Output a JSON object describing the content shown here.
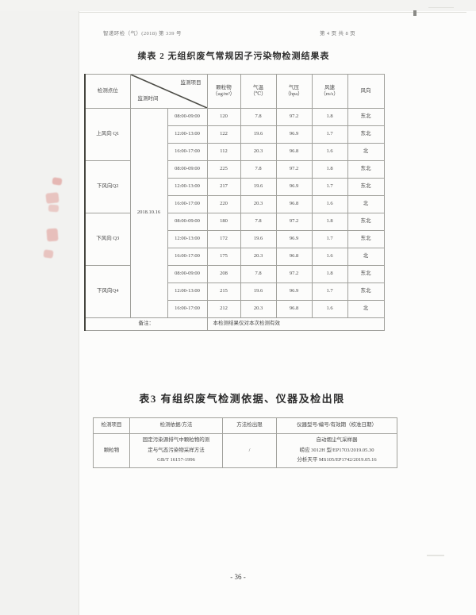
{
  "page": {
    "header_left": "智递环检（气）(2018) 第 339 号",
    "header_right": "第 4 页 共 8 页",
    "footer": "- 36 -"
  },
  "table1": {
    "title": "续表 2 无组织废气常规因子污染物检测结果表",
    "point_header": "检测点位",
    "corner_top": "监测项目",
    "corner_bottom": "监测时间",
    "columns": [
      {
        "name": "颗粒物",
        "unit": "（ug/m³）"
      },
      {
        "name": "气温",
        "unit": "（℃）"
      },
      {
        "name": "气压",
        "unit": "（hpa）"
      },
      {
        "name": "风速",
        "unit": "（m/s）"
      },
      {
        "name": "风向",
        "unit": ""
      }
    ],
    "date": "2018.10.16",
    "groups": [
      {
        "point": "上风向 Q1",
        "rows": [
          {
            "time": "08:00-09:00",
            "values": [
              "120",
              "7.8",
              "97.2",
              "1.8",
              "东北"
            ]
          },
          {
            "time": "12:00-13:00",
            "values": [
              "122",
              "19.6",
              "96.9",
              "1.7",
              "东北"
            ]
          },
          {
            "time": "16:00-17:00",
            "values": [
              "112",
              "20.3",
              "96.8",
              "1.6",
              "北"
            ]
          }
        ]
      },
      {
        "point": "下风向Q2",
        "rows": [
          {
            "time": "08:00-09:00",
            "values": [
              "225",
              "7.8",
              "97.2",
              "1.8",
              "东北"
            ]
          },
          {
            "time": "12:00-13:00",
            "values": [
              "217",
              "19.6",
              "96.9",
              "1.7",
              "东北"
            ]
          },
          {
            "time": "16:00-17:00",
            "values": [
              "220",
              "20.3",
              "96.8",
              "1.6",
              "北"
            ]
          }
        ]
      },
      {
        "point": "下风向 Q3",
        "rows": [
          {
            "time": "08:00-09:00",
            "values": [
              "180",
              "7.8",
              "97.2",
              "1.8",
              "东北"
            ]
          },
          {
            "time": "12:00-13:00",
            "values": [
              "172",
              "19.6",
              "96.9",
              "1.7",
              "东北"
            ]
          },
          {
            "time": "16:00-17:00",
            "values": [
              "175",
              "20.3",
              "96.8",
              "1.6",
              "北"
            ]
          }
        ]
      },
      {
        "point": "下风向Q4",
        "rows": [
          {
            "time": "08:00-09:00",
            "values": [
              "208",
              "7.8",
              "97.2",
              "1.8",
              "东北"
            ]
          },
          {
            "time": "12:00-13:00",
            "values": [
              "215",
              "19.6",
              "96.9",
              "1.7",
              "东北"
            ]
          },
          {
            "time": "16:00-17:00",
            "values": [
              "212",
              "20.3",
              "96.8",
              "1.6",
              "北"
            ]
          }
        ]
      }
    ],
    "note_label": "备注：",
    "note_text": "本检测结果仅对本次检测有效"
  },
  "table2": {
    "title": "表3 有组织废气检测依据、仪器及检出限",
    "headers": [
      "检测项目",
      "检测依据/方法",
      "方法检出限",
      "仪器型号/编号/有效期（校准日期）"
    ],
    "rows": [
      {
        "item": "颗粒物",
        "method_lines": [
          "固定污染源排气中颗粒物的测",
          "定与气态污染物采样方法",
          "GB/T 16157-1996"
        ],
        "detection_limit": "/",
        "instrument_lines": [
          "自动烟尘气采样器",
          "崂应 3012H 型/EP1703/2019.05.30",
          "分析天平 MS105/EP1742/2019.05.16"
        ]
      }
    ]
  }
}
